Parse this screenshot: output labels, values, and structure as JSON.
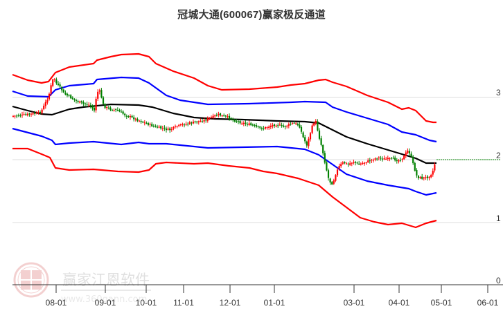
{
  "header": {
    "title": "冠城大通(600067)赢家极反通道"
  },
  "watermark": {
    "brand": "赢家江恩软件",
    "url": "www.360gann.com",
    "seal_chars": [
      "江",
      "赢",
      "恩",
      "家"
    ]
  },
  "colors": {
    "outer_band": "#ff0000",
    "inner_band": "#0000ff",
    "middle_line": "#000000",
    "candle_up": "#ff0000",
    "candle_down": "#008000",
    "last_price_line": "#008000",
    "grid": "#dddddd",
    "axis": "#333333"
  },
  "chart_data": {
    "type": "line",
    "subtype": "candlestick with channel bands",
    "title": "冠城大通(600067)赢家极反通道",
    "xlabel": "",
    "ylabel": "",
    "ylim": [
      0,
      3.3
    ],
    "y_ticks": [
      "0",
      "1",
      "2",
      "3"
    ],
    "x_ticks": [
      "08-01",
      "09-01",
      "10-01",
      "11-01",
      "12-01",
      "01-01",
      "03-01",
      "04-01",
      "05-01",
      "06-01"
    ],
    "grid": true,
    "legend": "none",
    "last_price": 2.0,
    "series": [
      {
        "name": "outer_upper",
        "color": "#ff0000",
        "x": [
          "07-15",
          "07-25",
          "08-01",
          "08-05",
          "08-15",
          "09-01",
          "09-05",
          "09-15",
          "09-25",
          "10-01",
          "10-10",
          "10-20",
          "11-01",
          "11-15",
          "12-01",
          "12-15",
          "01-01",
          "01-15",
          "01-25",
          "02-05",
          "02-15",
          "03-01",
          "03-15",
          "03-25",
          "04-01",
          "04-10",
          "04-20",
          "04-30"
        ],
        "values": [
          3.36,
          3.27,
          3.22,
          3.39,
          3.48,
          3.53,
          3.59,
          3.64,
          3.69,
          3.69,
          3.65,
          3.53,
          3.41,
          3.22,
          3.11,
          3.12,
          3.16,
          3.19,
          3.27,
          3.28,
          3.24,
          3.17,
          3.03,
          2.92,
          2.81,
          2.83,
          2.62,
          2.6
        ]
      },
      {
        "name": "inner_upper",
        "color": "#0000ff",
        "x": [
          "07-15",
          "07-25",
          "08-01",
          "08-05",
          "08-15",
          "09-01",
          "09-05",
          "09-15",
          "09-25",
          "10-01",
          "10-10",
          "10-20",
          "11-01",
          "11-15",
          "12-01",
          "12-15",
          "01-01",
          "01-15",
          "01-25",
          "02-05",
          "02-15",
          "03-01",
          "03-15",
          "03-25",
          "04-01",
          "04-10",
          "04-20",
          "04-30"
        ],
        "values": [
          3.09,
          3.01,
          3.0,
          3.12,
          3.18,
          3.22,
          3.28,
          3.31,
          3.31,
          3.3,
          3.22,
          3.03,
          2.95,
          2.92,
          2.89,
          2.89,
          2.9,
          2.92,
          2.93,
          2.92,
          2.84,
          2.76,
          2.66,
          2.56,
          2.44,
          2.4,
          2.31,
          2.29
        ]
      },
      {
        "name": "middle",
        "color": "#000000",
        "x": [
          "07-15",
          "07-25",
          "08-01",
          "08-05",
          "08-15",
          "09-01",
          "09-05",
          "09-15",
          "09-25",
          "10-01",
          "10-10",
          "10-20",
          "11-01",
          "11-15",
          "12-01",
          "12-15",
          "01-01",
          "01-15",
          "01-25",
          "02-05",
          "02-15",
          "03-01",
          "03-15",
          "03-25",
          "04-01",
          "04-10",
          "04-20",
          "04-30"
        ],
        "values": [
          2.85,
          2.78,
          2.73,
          2.72,
          2.81,
          2.84,
          2.88,
          2.88,
          2.87,
          2.84,
          2.74,
          2.67,
          2.65,
          2.64,
          2.62,
          2.62,
          2.61,
          2.6,
          2.58,
          2.47,
          2.36,
          2.25,
          2.15,
          2.09,
          2.02,
          1.95,
          1.95,
          1.95
        ]
      },
      {
        "name": "inner_lower",
        "color": "#0000ff",
        "x": [
          "07-15",
          "07-25",
          "08-01",
          "08-05",
          "08-15",
          "09-01",
          "09-05",
          "09-15",
          "09-25",
          "10-01",
          "10-10",
          "10-20",
          "11-01",
          "11-15",
          "12-01",
          "12-15",
          "01-01",
          "01-15",
          "01-25",
          "02-05",
          "02-15",
          "03-01",
          "03-15",
          "03-25",
          "04-01",
          "04-10",
          "04-20",
          "04-30"
        ],
        "values": [
          2.5,
          2.38,
          2.31,
          2.24,
          2.26,
          2.29,
          2.24,
          2.28,
          2.26,
          2.26,
          2.21,
          2.19,
          2.19,
          2.2,
          2.21,
          2.19,
          2.14,
          2.08,
          1.92,
          1.77,
          1.66,
          1.59,
          1.53,
          1.5,
          1.49,
          1.43,
          1.46,
          1.47
        ]
      },
      {
        "name": "outer_lower",
        "color": "#ff0000",
        "x": [
          "07-15",
          "07-25",
          "08-01",
          "08-05",
          "08-15",
          "09-01",
          "09-05",
          "09-15",
          "09-25",
          "10-01",
          "10-10",
          "10-20",
          "11-01",
          "11-15",
          "12-01",
          "12-15",
          "01-01",
          "01-15",
          "01-25",
          "02-05",
          "02-15",
          "03-01",
          "03-15",
          "03-25",
          "04-01",
          "04-10",
          "04-20",
          "04-30"
        ],
        "values": [
          2.18,
          2.09,
          2.03,
          1.87,
          1.84,
          1.86,
          1.81,
          1.8,
          1.82,
          1.93,
          1.95,
          1.93,
          1.94,
          1.9,
          1.87,
          1.81,
          1.78,
          1.7,
          1.59,
          1.4,
          1.24,
          1.07,
          0.97,
          0.96,
          0.97,
          0.92,
          0.98,
          1.03
        ]
      }
    ],
    "candles_approx_close": {
      "x": [
        "07-15",
        "07-25",
        "08-01",
        "08-05",
        "08-10",
        "08-20",
        "09-01",
        "09-05",
        "09-15",
        "10-01",
        "10-10",
        "10-20",
        "11-01",
        "11-15",
        "12-01",
        "12-15",
        "01-01",
        "01-15",
        "01-25",
        "02-01",
        "02-05",
        "02-10",
        "02-15",
        "03-01",
        "03-15",
        "03-25",
        "04-01",
        "04-10",
        "04-15",
        "04-20",
        "04-28",
        "04-30"
      ],
      "values": [
        2.68,
        2.7,
        2.73,
        2.96,
        3.02,
        2.93,
        2.92,
        2.83,
        2.78,
        2.75,
        2.63,
        2.57,
        2.58,
        2.67,
        2.72,
        2.63,
        2.56,
        2.6,
        2.6,
        2.3,
        2.6,
        2.38,
        1.85,
        1.98,
        1.97,
        2.03,
        2.01,
        2.05,
        1.74,
        1.7,
        1.78,
        2.0
      ]
    }
  }
}
